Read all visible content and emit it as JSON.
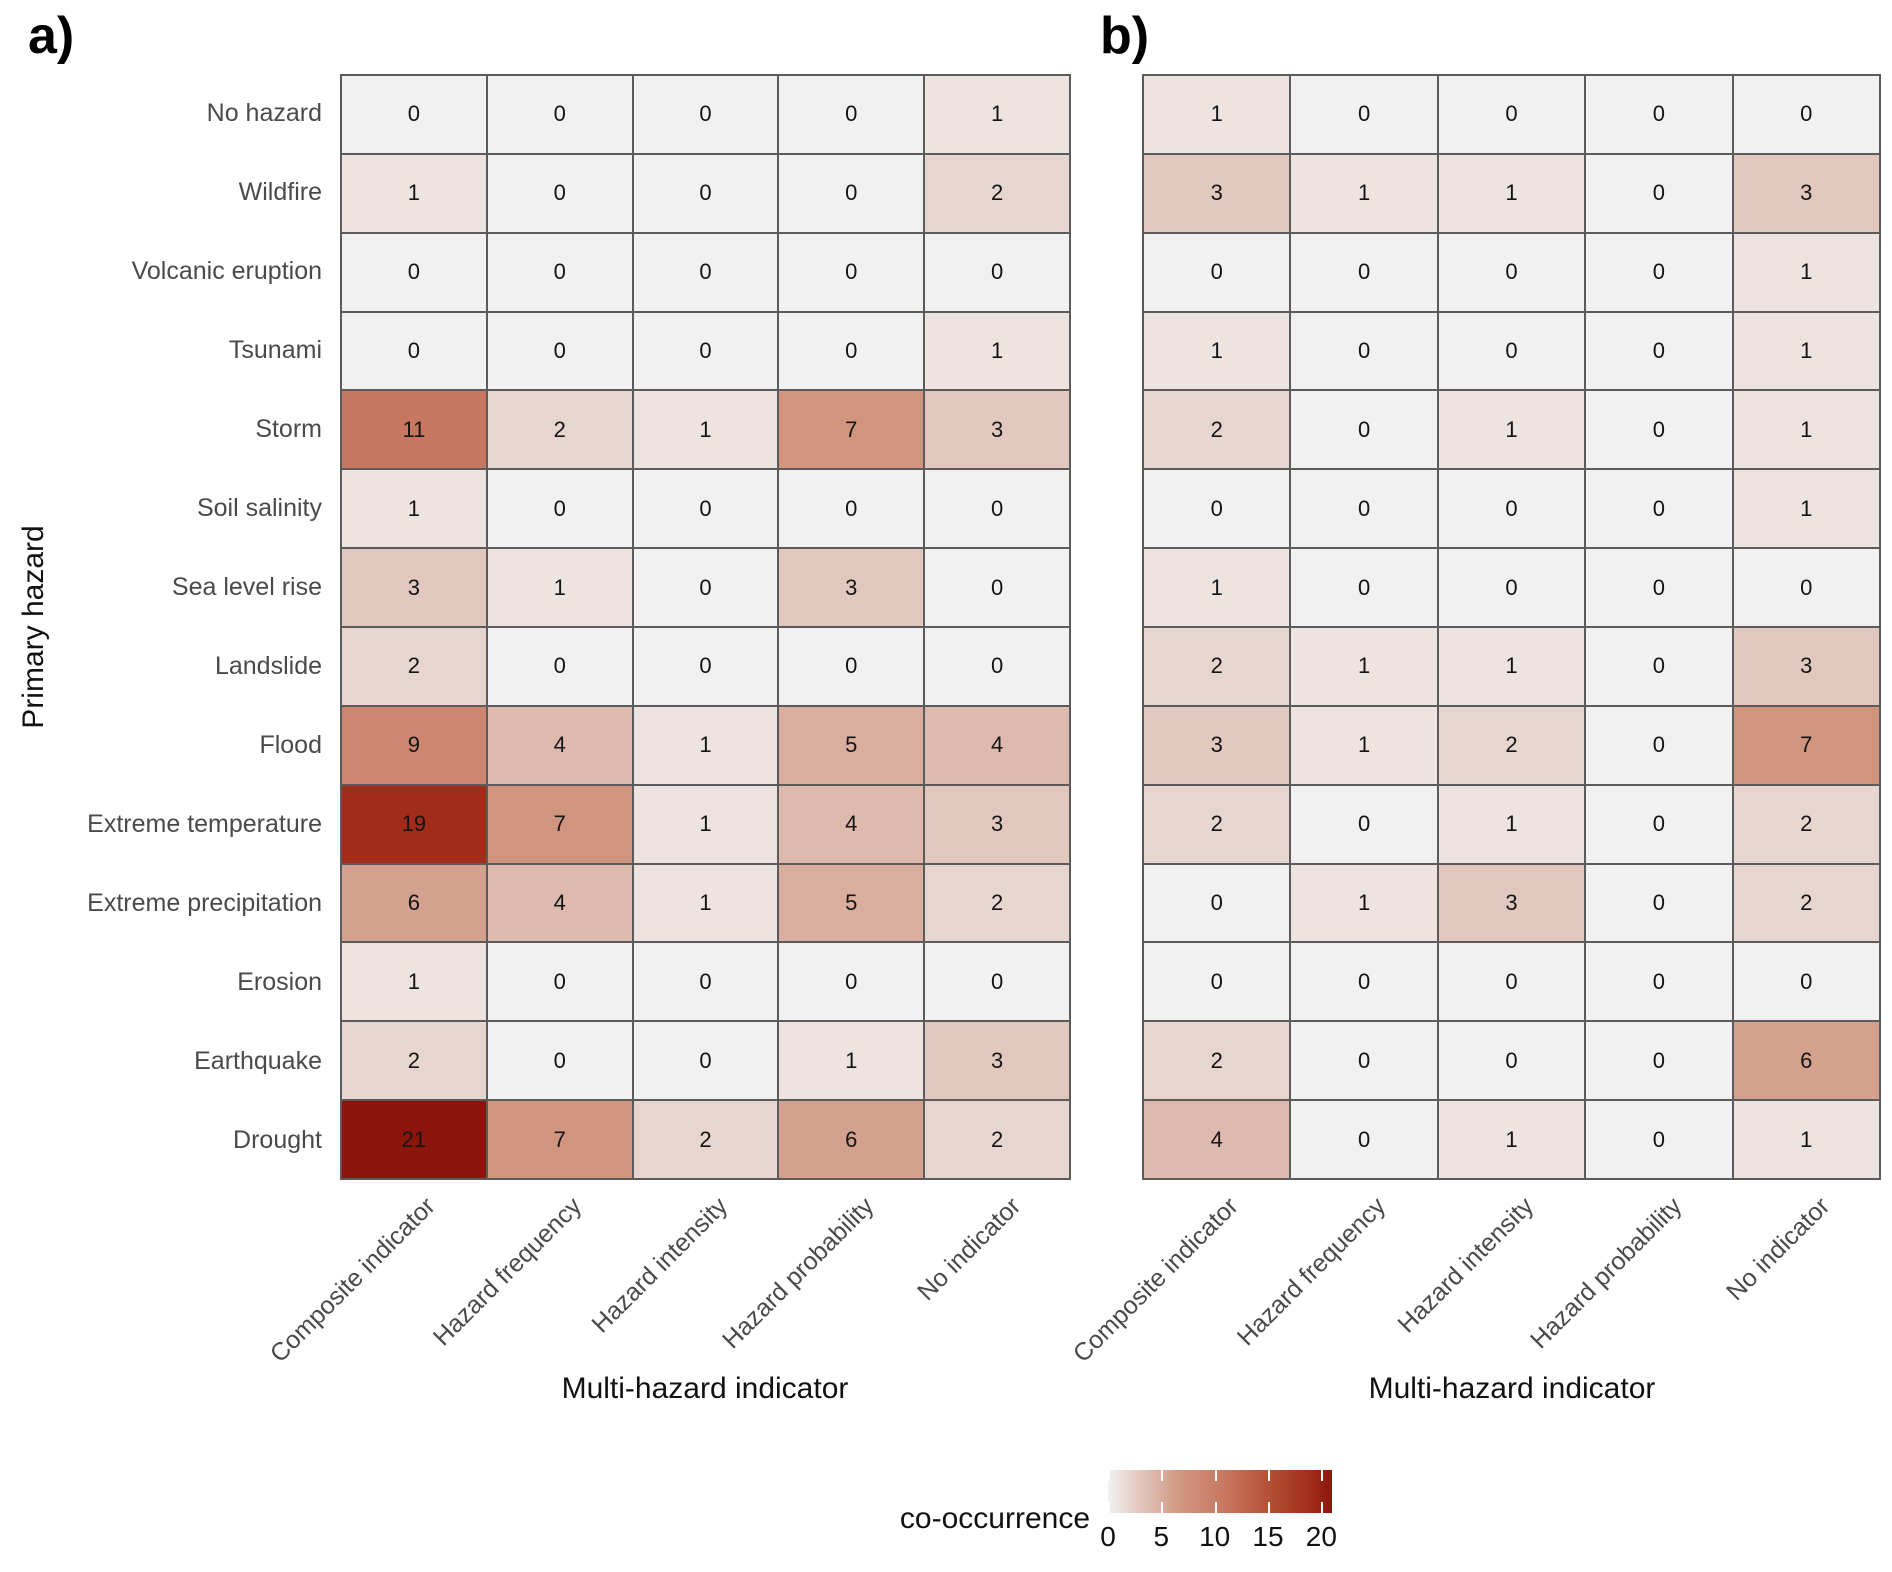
{
  "figure": {
    "x_axis_title": "Multi-hazard indicator",
    "y_axis_title": "Primary hazard"
  },
  "legend": {
    "title": "co-occurrence",
    "ticks": [
      0,
      5,
      10,
      15,
      20
    ],
    "min": 0,
    "max": 21,
    "position": "bottom-right"
  },
  "colors": {
    "scale_stops": [
      [
        0,
        "#F2F1F1"
      ],
      [
        3,
        "#E2C7BE"
      ],
      [
        7,
        "#D0947F"
      ],
      [
        11,
        "#C87860"
      ],
      [
        15,
        "#B55138"
      ],
      [
        19,
        "#A02C19"
      ],
      [
        21,
        "#8B150B"
      ]
    ],
    "cell_border": "#5b5b5b",
    "axis_text": "#4a4a4a",
    "cell_text": "#141414"
  },
  "chart_data": [
    {
      "type": "heatmap",
      "panel": "a)",
      "xlabel": "Multi-hazard indicator",
      "ylabel": "Primary hazard",
      "legend_label": "co-occurrence",
      "color_range": [
        0,
        21
      ],
      "grid": false,
      "x_categories": [
        "Composite indicator",
        "Hazard frequency",
        "Hazard intensity",
        "Hazard probability",
        "No indicator"
      ],
      "y_categories_top_to_bottom": [
        "No hazard",
        "Wildfire",
        "Volcanic eruption",
        "Tsunami",
        "Storm",
        "Soil salinity",
        "Sea level rise",
        "Landslide",
        "Flood",
        "Extreme temperature",
        "Extreme precipitation",
        "Erosion",
        "Earthquake",
        "Drought"
      ],
      "values": [
        [
          0,
          0,
          0,
          0,
          1
        ],
        [
          1,
          0,
          0,
          0,
          2
        ],
        [
          0,
          0,
          0,
          0,
          0
        ],
        [
          0,
          0,
          0,
          0,
          1
        ],
        [
          11,
          2,
          1,
          7,
          3
        ],
        [
          1,
          0,
          0,
          0,
          0
        ],
        [
          3,
          1,
          0,
          3,
          0
        ],
        [
          2,
          0,
          0,
          0,
          0
        ],
        [
          9,
          4,
          1,
          5,
          4
        ],
        [
          19,
          7,
          1,
          4,
          3
        ],
        [
          6,
          4,
          1,
          5,
          2
        ],
        [
          1,
          0,
          0,
          0,
          0
        ],
        [
          2,
          0,
          0,
          1,
          3
        ],
        [
          21,
          7,
          2,
          6,
          2
        ]
      ]
    },
    {
      "type": "heatmap",
      "panel": "b)",
      "xlabel": "Multi-hazard indicator",
      "ylabel": "Primary hazard",
      "legend_label": "co-occurrence",
      "color_range": [
        0,
        21
      ],
      "grid": false,
      "x_categories": [
        "Composite indicator",
        "Hazard frequency",
        "Hazard intensity",
        "Hazard probability",
        "No indicator"
      ],
      "y_categories_top_to_bottom": [
        "No hazard",
        "Wildfire",
        "Volcanic eruption",
        "Tsunami",
        "Storm",
        "Soil salinity",
        "Sea level rise",
        "Landslide",
        "Flood",
        "Extreme temperature",
        "Extreme precipitation",
        "Erosion",
        "Earthquake",
        "Drought"
      ],
      "values": [
        [
          1,
          0,
          0,
          0,
          0
        ],
        [
          3,
          1,
          1,
          0,
          3
        ],
        [
          0,
          0,
          0,
          0,
          1
        ],
        [
          1,
          0,
          0,
          0,
          1
        ],
        [
          2,
          0,
          1,
          0,
          1
        ],
        [
          0,
          0,
          0,
          0,
          1
        ],
        [
          1,
          0,
          0,
          0,
          0
        ],
        [
          2,
          1,
          1,
          0,
          3
        ],
        [
          3,
          1,
          2,
          0,
          7
        ],
        [
          2,
          0,
          1,
          0,
          2
        ],
        [
          0,
          1,
          3,
          0,
          2
        ],
        [
          0,
          0,
          0,
          0,
          0
        ],
        [
          2,
          0,
          0,
          0,
          6
        ],
        [
          4,
          0,
          1,
          0,
          1
        ]
      ]
    }
  ]
}
